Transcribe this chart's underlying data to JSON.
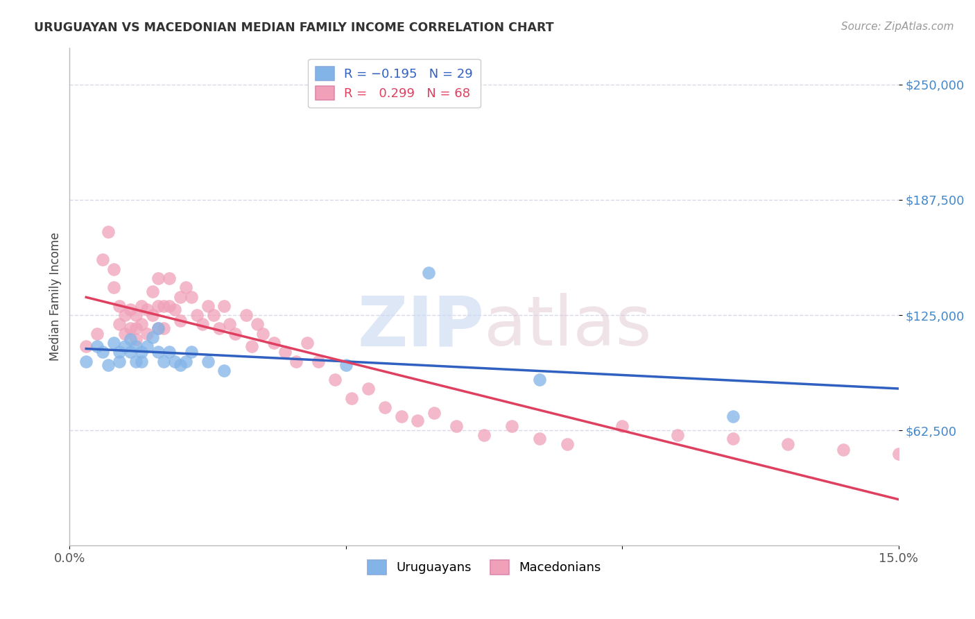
{
  "title": "URUGUAYAN VS MACEDONIAN MEDIAN FAMILY INCOME CORRELATION CHART",
  "source": "Source: ZipAtlas.com",
  "ylabel": "Median Family Income",
  "xlim": [
    0.0,
    0.15
  ],
  "ylim": [
    0,
    270000
  ],
  "yticks": [
    62500,
    125000,
    187500,
    250000
  ],
  "ytick_labels": [
    "$62,500",
    "$125,000",
    "$187,500",
    "$250,000"
  ],
  "xticks": [
    0.0,
    0.05,
    0.1,
    0.15
  ],
  "xtick_labels": [
    "0.0%",
    "",
    "",
    "15.0%"
  ],
  "background_color": "#ffffff",
  "grid_color": "#d8d8e8",
  "uruguayan_color": "#82B4E8",
  "macedonian_color": "#F0A0B8",
  "uruguayan_line_color": "#3060C0",
  "macedonian_line_color": "#E04060",
  "macedonian_dash_color": "#C89098",
  "ytick_color": "#4488CC",
  "xtick_color": "#555555",
  "uruguayan_x": [
    0.003,
    0.005,
    0.006,
    0.007,
    0.008,
    0.009,
    0.009,
    0.01,
    0.011,
    0.011,
    0.012,
    0.012,
    0.013,
    0.013,
    0.014,
    0.015,
    0.016,
    0.016,
    0.017,
    0.018,
    0.019,
    0.02,
    0.021,
    0.022,
    0.025,
    0.028,
    0.05,
    0.065,
    0.085,
    0.12
  ],
  "uruguayan_y": [
    100000,
    108000,
    105000,
    98000,
    110000,
    105000,
    100000,
    108000,
    112000,
    105000,
    100000,
    108000,
    105000,
    100000,
    108000,
    113000,
    105000,
    118000,
    100000,
    105000,
    100000,
    98000,
    100000,
    105000,
    100000,
    95000,
    98000,
    148000,
    90000,
    70000
  ],
  "macedonian_x": [
    0.003,
    0.005,
    0.006,
    0.007,
    0.008,
    0.008,
    0.009,
    0.009,
    0.01,
    0.01,
    0.011,
    0.011,
    0.012,
    0.012,
    0.012,
    0.013,
    0.013,
    0.014,
    0.014,
    0.015,
    0.015,
    0.016,
    0.016,
    0.016,
    0.017,
    0.017,
    0.018,
    0.018,
    0.019,
    0.02,
    0.02,
    0.021,
    0.022,
    0.023,
    0.024,
    0.025,
    0.026,
    0.027,
    0.028,
    0.029,
    0.03,
    0.032,
    0.033,
    0.034,
    0.035,
    0.037,
    0.039,
    0.041,
    0.043,
    0.045,
    0.048,
    0.051,
    0.054,
    0.057,
    0.06,
    0.063,
    0.066,
    0.07,
    0.075,
    0.08,
    0.085,
    0.09,
    0.1,
    0.11,
    0.12,
    0.13,
    0.14,
    0.15
  ],
  "macedonian_y": [
    108000,
    115000,
    155000,
    170000,
    150000,
    140000,
    130000,
    120000,
    125000,
    115000,
    128000,
    118000,
    125000,
    118000,
    112000,
    130000,
    120000,
    128000,
    115000,
    138000,
    125000,
    145000,
    130000,
    118000,
    130000,
    118000,
    145000,
    130000,
    128000,
    135000,
    122000,
    140000,
    135000,
    125000,
    120000,
    130000,
    125000,
    118000,
    130000,
    120000,
    115000,
    125000,
    108000,
    120000,
    115000,
    110000,
    105000,
    100000,
    110000,
    100000,
    90000,
    80000,
    85000,
    75000,
    70000,
    68000,
    72000,
    65000,
    60000,
    65000,
    58000,
    55000,
    65000,
    60000,
    58000,
    55000,
    52000,
    50000
  ]
}
